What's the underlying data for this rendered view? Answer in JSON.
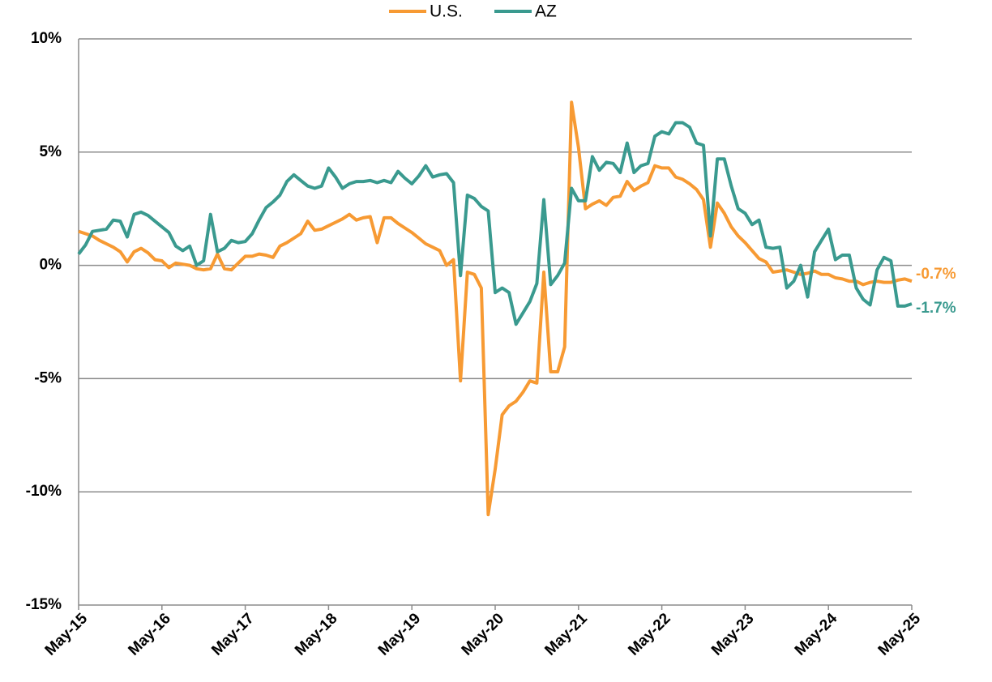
{
  "chart_data": {
    "type": "line",
    "categories": [
      "May-15",
      null,
      null,
      null,
      null,
      null,
      null,
      null,
      null,
      null,
      null,
      null,
      "May-16",
      null,
      null,
      null,
      null,
      null,
      null,
      null,
      null,
      null,
      null,
      null,
      "May-17",
      null,
      null,
      null,
      null,
      null,
      null,
      null,
      null,
      null,
      null,
      null,
      "May-18",
      null,
      null,
      null,
      null,
      null,
      null,
      null,
      null,
      null,
      null,
      null,
      "May-19",
      null,
      null,
      null,
      null,
      null,
      null,
      null,
      null,
      null,
      null,
      null,
      "May-20",
      null,
      null,
      null,
      null,
      null,
      null,
      null,
      null,
      null,
      null,
      null,
      "May-21",
      null,
      null,
      null,
      null,
      null,
      null,
      null,
      null,
      null,
      null,
      null,
      "May-22",
      null,
      null,
      null,
      null,
      null,
      null,
      null,
      null,
      null,
      null,
      null,
      "May-23",
      null,
      null,
      null,
      null,
      null,
      null,
      null,
      null,
      null,
      null,
      null,
      "May-24",
      null,
      null,
      null,
      null,
      null,
      null,
      null,
      null,
      null,
      null,
      null,
      "May-25"
    ],
    "series": [
      {
        "name": "U.S.",
        "color": "#f79a33",
        "values": [
          1.5,
          1.4,
          1.3,
          1.1,
          0.95,
          0.8,
          0.6,
          0.15,
          0.6,
          0.75,
          0.55,
          0.25,
          0.2,
          -0.1,
          0.1,
          0.05,
          0.0,
          -0.15,
          -0.2,
          -0.15,
          0.5,
          -0.15,
          -0.2,
          0.1,
          0.4,
          0.4,
          0.5,
          0.45,
          0.35,
          0.85,
          1.0,
          1.2,
          1.4,
          1.95,
          1.55,
          1.6,
          1.75,
          1.9,
          2.05,
          2.25,
          2.0,
          2.1,
          2.15,
          1.0,
          2.1,
          2.1,
          1.85,
          1.65,
          1.45,
          1.2,
          0.95,
          0.8,
          0.65,
          0.0,
          0.25,
          -5.1,
          -0.3,
          -0.4,
          -1.0,
          -11.0,
          -9.0,
          -6.6,
          -6.2,
          -6.0,
          -5.6,
          -5.1,
          -5.2,
          -0.3,
          -4.7,
          -4.7,
          -3.6,
          7.2,
          5.2,
          2.5,
          2.7,
          2.85,
          2.65,
          3.0,
          3.05,
          3.7,
          3.3,
          3.5,
          3.65,
          4.4,
          4.3,
          4.3,
          3.9,
          3.8,
          3.6,
          3.35,
          2.9,
          0.8,
          2.75,
          2.3,
          1.7,
          1.3,
          1.0,
          0.65,
          0.3,
          0.15,
          -0.3,
          -0.25,
          -0.2,
          -0.3,
          -0.4,
          -0.35,
          -0.25,
          -0.4,
          -0.4,
          -0.55,
          -0.6,
          -0.7,
          -0.7,
          -0.85,
          -0.75,
          -0.7,
          -0.75,
          -0.75,
          -0.65,
          -0.6,
          -0.7
        ],
        "value_labels": [
          null,
          null,
          null,
          null,
          null,
          null,
          null,
          null,
          null,
          null,
          null,
          null,
          null,
          null,
          null,
          null,
          null,
          null,
          null,
          null,
          null,
          null,
          null,
          null,
          null,
          null,
          null,
          null,
          null,
          null,
          null,
          null,
          null,
          null,
          null,
          null,
          null,
          null,
          null,
          null,
          null,
          null,
          null,
          null,
          null,
          null,
          null,
          null,
          null,
          null,
          null,
          null,
          null,
          null,
          null,
          null,
          null,
          null,
          null,
          null,
          null,
          null,
          null,
          null,
          null,
          null,
          null,
          null,
          null,
          null,
          null,
          null,
          null,
          null,
          null,
          null,
          null,
          null,
          null,
          null,
          null,
          null,
          null,
          null,
          null,
          null,
          null,
          null,
          null,
          null,
          null,
          null,
          null,
          null,
          null,
          null,
          null,
          null,
          null,
          null,
          null,
          null,
          null,
          null,
          null,
          null,
          null,
          null,
          null,
          null,
          null,
          null,
          null,
          null,
          null,
          null,
          null,
          null,
          null,
          null,
          "-0.7%"
        ]
      },
      {
        "name": "AZ",
        "color": "#3a9a8f",
        "values": [
          0.5,
          0.9,
          1.5,
          1.55,
          1.6,
          2.0,
          1.95,
          1.25,
          2.25,
          2.35,
          2.2,
          1.95,
          1.7,
          1.45,
          0.85,
          0.65,
          0.85,
          0.0,
          0.2,
          2.25,
          0.6,
          0.75,
          1.1,
          1.0,
          1.05,
          1.4,
          2.0,
          2.55,
          2.8,
          3.1,
          3.7,
          4.0,
          3.75,
          3.5,
          3.4,
          3.5,
          4.3,
          3.9,
          3.4,
          3.6,
          3.7,
          3.7,
          3.75,
          3.65,
          3.75,
          3.65,
          4.15,
          3.85,
          3.6,
          3.95,
          4.4,
          3.9,
          4.0,
          4.05,
          3.65,
          -0.45,
          3.1,
          2.95,
          2.6,
          2.4,
          -1.2,
          -1.0,
          -1.2,
          -2.6,
          -2.1,
          -1.6,
          -0.8,
          2.9,
          -0.85,
          -0.45,
          0.1,
          3.4,
          2.85,
          2.85,
          4.8,
          4.2,
          4.55,
          4.5,
          4.1,
          5.4,
          4.1,
          4.4,
          4.5,
          5.7,
          5.9,
          5.8,
          6.3,
          6.3,
          6.1,
          5.4,
          5.3,
          1.3,
          4.7,
          4.7,
          3.5,
          2.5,
          2.3,
          1.8,
          2.0,
          0.8,
          0.75,
          0.8,
          -1.0,
          -0.7,
          0.0,
          -1.4,
          0.6,
          1.1,
          1.6,
          0.25,
          0.45,
          0.45,
          -1.0,
          -1.5,
          -1.75,
          -0.2,
          0.35,
          0.2,
          -1.8,
          -1.8,
          -1.7
        ],
        "value_labels": [
          null,
          null,
          null,
          null,
          null,
          null,
          null,
          null,
          null,
          null,
          null,
          null,
          null,
          null,
          null,
          null,
          null,
          null,
          null,
          null,
          null,
          null,
          null,
          null,
          null,
          null,
          null,
          null,
          null,
          null,
          null,
          null,
          null,
          null,
          null,
          null,
          null,
          null,
          null,
          null,
          null,
          null,
          null,
          null,
          null,
          null,
          null,
          null,
          null,
          null,
          null,
          null,
          null,
          null,
          null,
          null,
          null,
          null,
          null,
          null,
          null,
          null,
          null,
          null,
          null,
          null,
          null,
          null,
          null,
          null,
          null,
          null,
          null,
          null,
          null,
          null,
          null,
          null,
          null,
          null,
          null,
          null,
          null,
          null,
          null,
          null,
          null,
          null,
          null,
          null,
          null,
          null,
          null,
          null,
          null,
          null,
          null,
          null,
          null,
          null,
          null,
          null,
          null,
          null,
          null,
          null,
          null,
          null,
          null,
          null,
          null,
          null,
          null,
          null,
          null,
          null,
          null,
          null,
          null,
          null,
          "-1.7%"
        ]
      }
    ],
    "ylim": [
      -15,
      10
    ],
    "yticks": [
      {
        "value": -15,
        "label": "-15%"
      },
      {
        "value": -10,
        "label": "-10%"
      },
      {
        "value": -5,
        "label": "-5%"
      },
      {
        "value": 0,
        "label": "0%"
      },
      {
        "value": 5,
        "label": "5%"
      },
      {
        "value": 10,
        "label": "10%"
      }
    ],
    "grid": true,
    "legend": "top"
  }
}
